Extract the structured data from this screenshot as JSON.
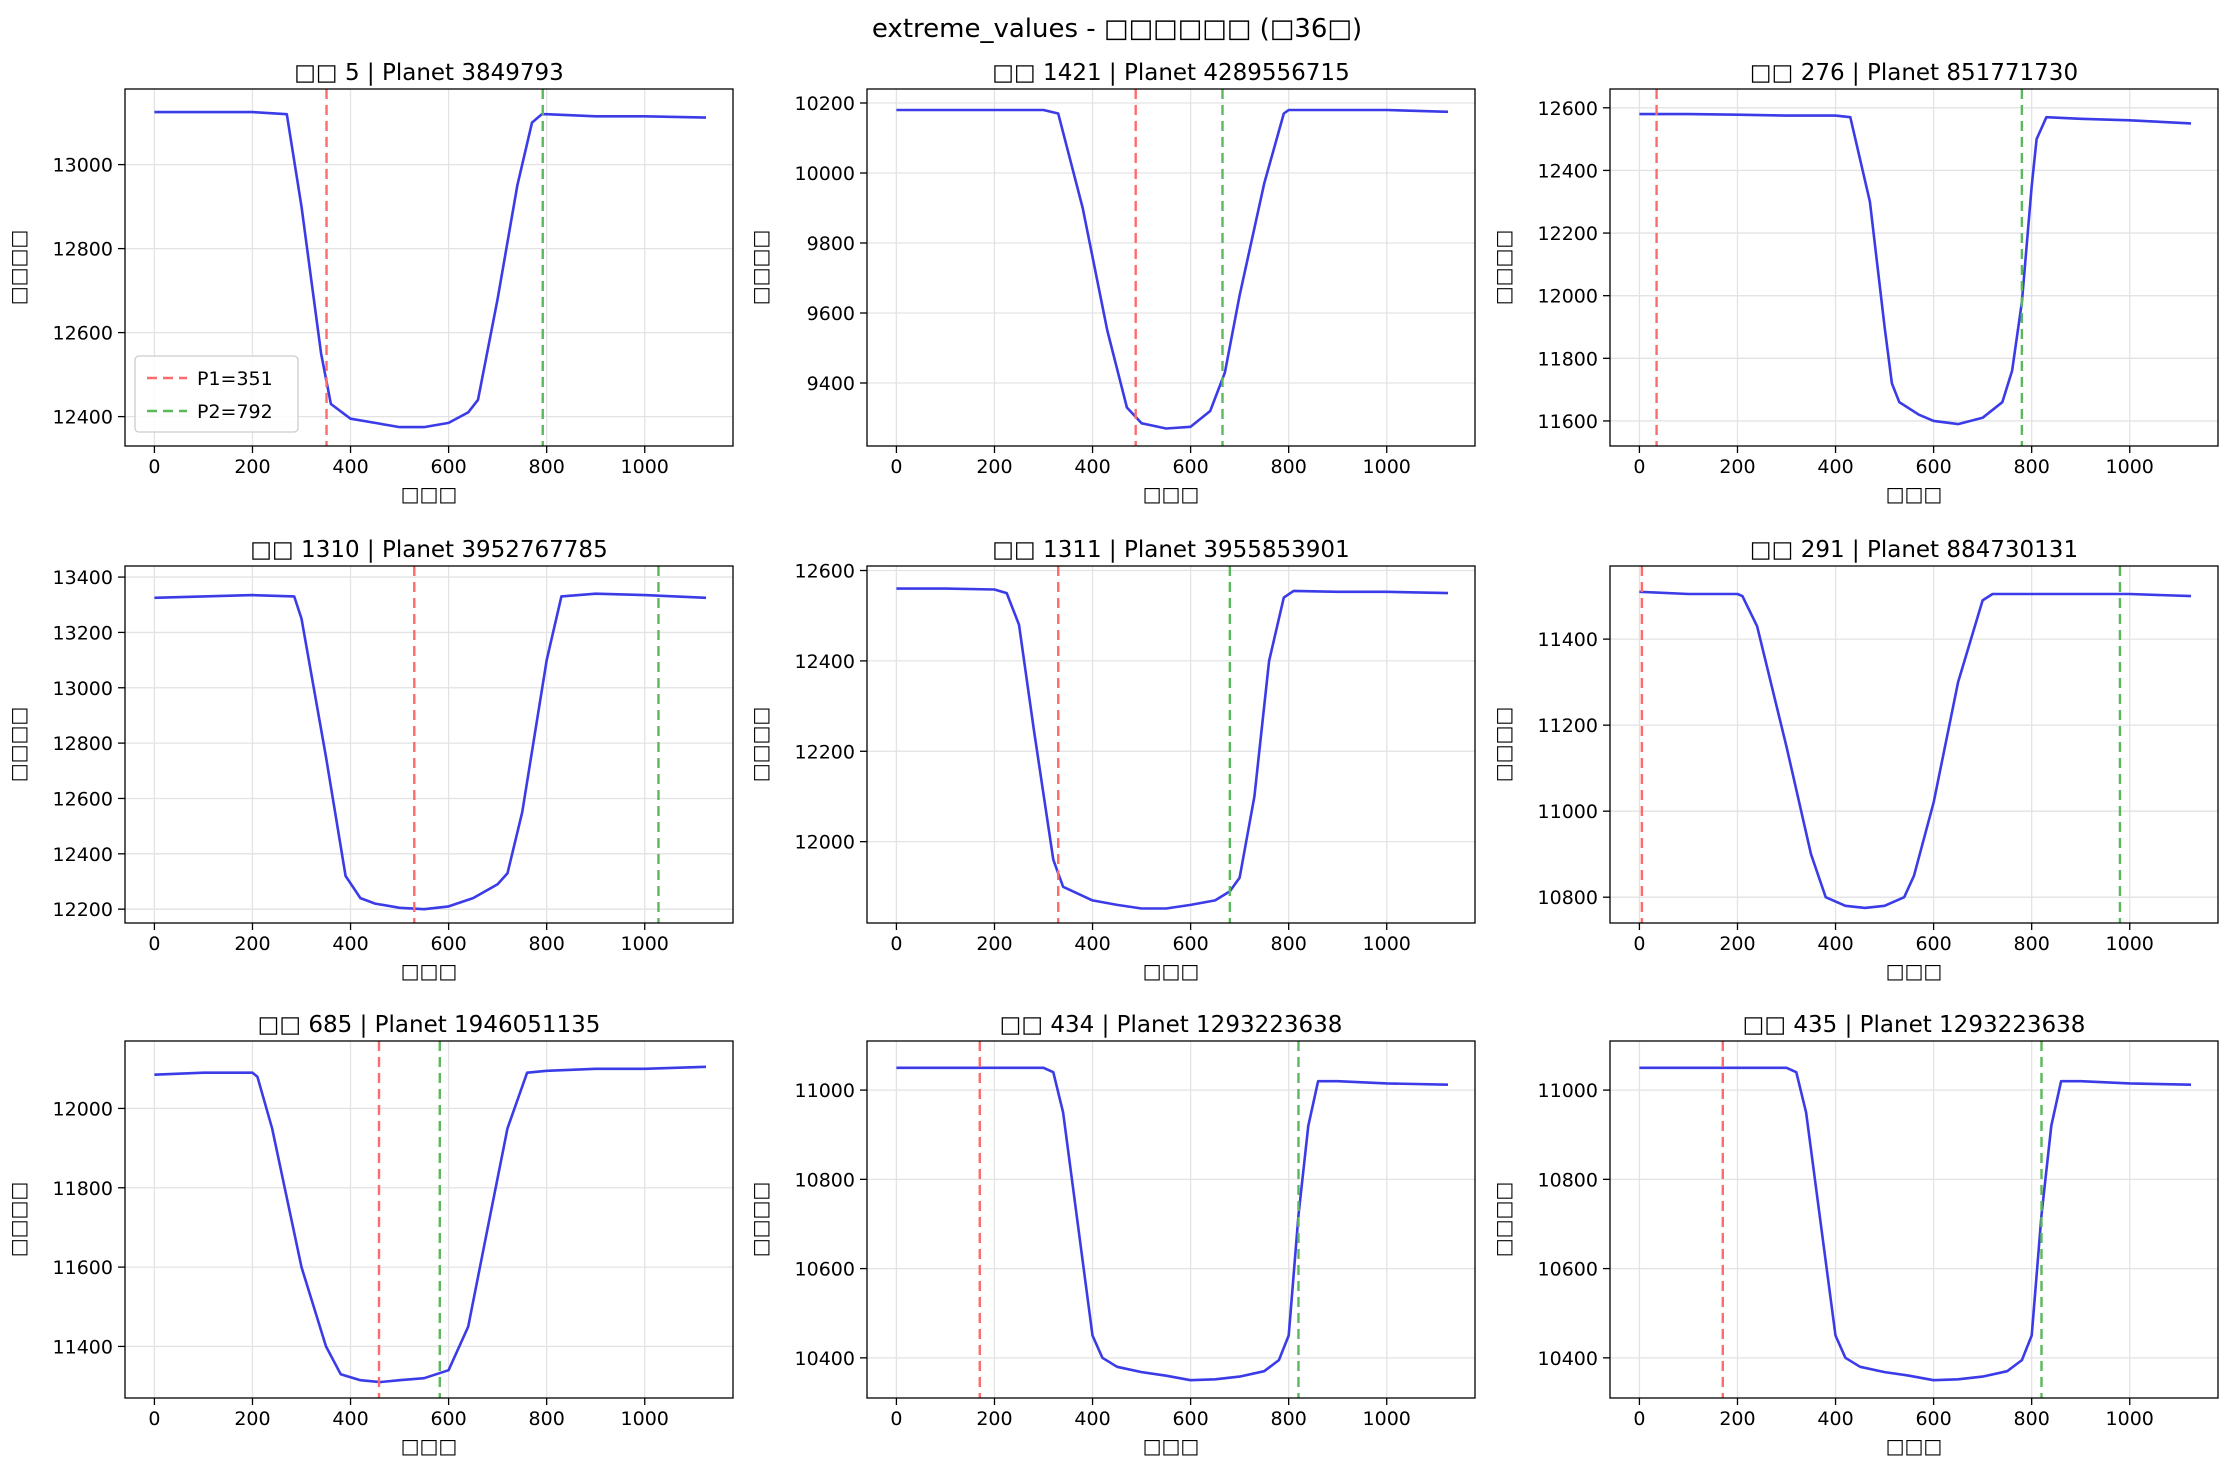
{
  "figure_title": "extreme_values - □□□□□□ (□36□)",
  "chart_data": [
    {
      "type": "line",
      "title": "□□ 5 | Planet 3849793",
      "xlabel": "□□□",
      "ylabel": "□□□□",
      "xlim": [
        -60,
        1180
      ],
      "ylim": [
        12330,
        13180
      ],
      "x_ticks": [
        0,
        200,
        400,
        600,
        800,
        1000
      ],
      "y_ticks": [
        12400,
        12600,
        12800,
        13000
      ],
      "p1": 351,
      "p2": 792,
      "legend": {
        "position": "lower-left",
        "entries": [
          "P1=351",
          "P2=792"
        ]
      },
      "series": [
        {
          "color": "#3b3be8",
          "x": [
            0,
            100,
            200,
            270,
            300,
            340,
            360,
            400,
            450,
            500,
            550,
            600,
            640,
            660,
            700,
            740,
            770,
            790,
            800,
            900,
            1000,
            1125
          ],
          "y": [
            13125,
            13125,
            13125,
            13120,
            12900,
            12550,
            12430,
            12395,
            12385,
            12375,
            12375,
            12385,
            12410,
            12440,
            12680,
            12950,
            13100,
            13120,
            13120,
            13115,
            13115,
            13112
          ]
        }
      ]
    },
    {
      "type": "line",
      "title": "□□ 1421 | Planet 4289556715",
      "xlabel": "□□□",
      "ylabel": "□□□□",
      "xlim": [
        -60,
        1180
      ],
      "ylim": [
        9220,
        10240
      ],
      "x_ticks": [
        0,
        200,
        400,
        600,
        800,
        1000
      ],
      "y_ticks": [
        9400,
        9600,
        9800,
        10000,
        10200
      ],
      "p1": 488,
      "p2": 665,
      "series": [
        {
          "color": "#3b3be8",
          "x": [
            0,
            100,
            200,
            300,
            330,
            380,
            430,
            470,
            500,
            550,
            600,
            640,
            670,
            700,
            750,
            790,
            800,
            900,
            1000,
            1125
          ],
          "y": [
            10180,
            10180,
            10180,
            10180,
            10170,
            9900,
            9550,
            9330,
            9285,
            9270,
            9275,
            9320,
            9430,
            9650,
            9970,
            10170,
            10180,
            10180,
            10180,
            10175
          ]
        }
      ]
    },
    {
      "type": "line",
      "title": "□□ 276 | Planet 851771730",
      "xlabel": "□□□",
      "ylabel": "□□□□",
      "xlim": [
        -60,
        1180
      ],
      "ylim": [
        11520,
        12660
      ],
      "x_ticks": [
        0,
        200,
        400,
        600,
        800,
        1000
      ],
      "y_ticks": [
        11600,
        11800,
        12000,
        12200,
        12400,
        12600
      ],
      "p1": 35,
      "p2": 780,
      "series": [
        {
          "color": "#3b3be8",
          "x": [
            0,
            100,
            200,
            300,
            400,
            430,
            470,
            500,
            515,
            530,
            570,
            600,
            650,
            700,
            740,
            760,
            780,
            800,
            810,
            830,
            900,
            1000,
            1125
          ],
          "y": [
            12580,
            12580,
            12578,
            12575,
            12575,
            12570,
            12300,
            11900,
            11720,
            11660,
            11620,
            11600,
            11590,
            11610,
            11660,
            11760,
            11980,
            12350,
            12500,
            12570,
            12565,
            12560,
            12550
          ]
        }
      ]
    },
    {
      "type": "line",
      "title": "□□ 1310 | Planet 3952767785",
      "xlabel": "□□□",
      "ylabel": "□□□□",
      "xlim": [
        -60,
        1180
      ],
      "ylim": [
        12150,
        13440
      ],
      "x_ticks": [
        0,
        200,
        400,
        600,
        800,
        1000
      ],
      "y_ticks": [
        12200,
        12400,
        12600,
        12800,
        13000,
        13200,
        13400
      ],
      "p1": 530,
      "p2": 1028,
      "series": [
        {
          "color": "#3b3be8",
          "x": [
            0,
            100,
            200,
            285,
            300,
            350,
            390,
            420,
            450,
            500,
            550,
            600,
            650,
            700,
            720,
            750,
            800,
            830,
            900,
            1000,
            1125
          ],
          "y": [
            13325,
            13330,
            13335,
            13330,
            13250,
            12750,
            12320,
            12240,
            12220,
            12205,
            12200,
            12210,
            12240,
            12290,
            12330,
            12550,
            13100,
            13330,
            13340,
            13335,
            13325
          ]
        }
      ]
    },
    {
      "type": "line",
      "title": "□□ 1311 | Planet 3955853901",
      "xlabel": "□□□",
      "ylabel": "□□□□",
      "xlim": [
        -60,
        1180
      ],
      "ylim": [
        11820,
        12610
      ],
      "x_ticks": [
        0,
        200,
        400,
        600,
        800,
        1000
      ],
      "y_ticks": [
        12000,
        12200,
        12400,
        12600
      ],
      "p1": 330,
      "p2": 680,
      "series": [
        {
          "color": "#3b3be8",
          "x": [
            0,
            100,
            200,
            225,
            250,
            280,
            320,
            340,
            400,
            450,
            500,
            550,
            600,
            650,
            680,
            700,
            730,
            760,
            790,
            810,
            900,
            1000,
            1125
          ],
          "y": [
            12560,
            12560,
            12558,
            12550,
            12480,
            12250,
            11960,
            11900,
            11870,
            11860,
            11852,
            11852,
            11860,
            11870,
            11890,
            11920,
            12100,
            12400,
            12540,
            12555,
            12553,
            12553,
            12550
          ]
        }
      ]
    },
    {
      "type": "line",
      "title": "□□ 291 | Planet 884730131",
      "xlabel": "□□□",
      "ylabel": "□□□□",
      "xlim": [
        -60,
        1180
      ],
      "ylim": [
        10740,
        11570
      ],
      "x_ticks": [
        0,
        200,
        400,
        600,
        800,
        1000
      ],
      "y_ticks": [
        10800,
        11000,
        11200,
        11400
      ],
      "p1": 5,
      "p2": 980,
      "series": [
        {
          "color": "#3b3be8",
          "x": [
            0,
            100,
            200,
            210,
            240,
            300,
            350,
            380,
            420,
            460,
            500,
            540,
            560,
            600,
            650,
            700,
            720,
            800,
            900,
            1000,
            1125
          ],
          "y": [
            11510,
            11505,
            11505,
            11500,
            11430,
            11150,
            10900,
            10800,
            10780,
            10775,
            10780,
            10800,
            10850,
            11020,
            11300,
            11490,
            11505,
            11505,
            11505,
            11505,
            11500
          ]
        }
      ]
    },
    {
      "type": "line",
      "title": "□□ 685 | Planet 1946051135",
      "xlabel": "□□□",
      "ylabel": "□□□□",
      "xlim": [
        -60,
        1180
      ],
      "ylim": [
        11270,
        12170
      ],
      "x_ticks": [
        0,
        200,
        400,
        600,
        800,
        1000
      ],
      "y_ticks": [
        11400,
        11600,
        11800,
        12000
      ],
      "p1": 458,
      "p2": 582,
      "series": [
        {
          "color": "#3b3be8",
          "x": [
            0,
            100,
            200,
            210,
            240,
            300,
            350,
            380,
            420,
            460,
            500,
            550,
            600,
            640,
            680,
            720,
            760,
            800,
            900,
            1000,
            1125
          ],
          "y": [
            12085,
            12090,
            12090,
            12080,
            11950,
            11600,
            11400,
            11330,
            11315,
            11310,
            11315,
            11320,
            11340,
            11450,
            11700,
            11950,
            12090,
            12095,
            12100,
            12100,
            12105
          ]
        }
      ]
    },
    {
      "type": "line",
      "title": "□□ 434 | Planet 1293223638",
      "xlabel": "□□□",
      "ylabel": "□□□□",
      "xlim": [
        -60,
        1180
      ],
      "ylim": [
        10310,
        11110
      ],
      "x_ticks": [
        0,
        200,
        400,
        600,
        800,
        1000
      ],
      "y_ticks": [
        10400,
        10600,
        10800,
        11000
      ],
      "p1": 170,
      "p2": 820,
      "series": [
        {
          "color": "#3b3be8",
          "x": [
            0,
            100,
            200,
            300,
            320,
            340,
            370,
            400,
            420,
            450,
            500,
            550,
            600,
            650,
            700,
            750,
            780,
            800,
            820,
            840,
            860,
            900,
            1000,
            1125
          ],
          "y": [
            11050,
            11050,
            11050,
            11050,
            11040,
            10950,
            10700,
            10450,
            10400,
            10380,
            10368,
            10360,
            10350,
            10352,
            10358,
            10370,
            10395,
            10450,
            10720,
            10920,
            11020,
            11020,
            11015,
            11012
          ]
        }
      ]
    },
    {
      "type": "line",
      "title": "□□ 435 | Planet 1293223638",
      "xlabel": "□□□",
      "ylabel": "□□□□",
      "xlim": [
        -60,
        1180
      ],
      "ylim": [
        10310,
        11110
      ],
      "x_ticks": [
        0,
        200,
        400,
        600,
        800,
        1000
      ],
      "y_ticks": [
        10400,
        10600,
        10800,
        11000
      ],
      "p1": 170,
      "p2": 820,
      "series": [
        {
          "color": "#3b3be8",
          "x": [
            0,
            100,
            200,
            300,
            320,
            340,
            370,
            400,
            420,
            450,
            500,
            550,
            600,
            650,
            700,
            750,
            780,
            800,
            820,
            840,
            860,
            900,
            1000,
            1125
          ],
          "y": [
            11050,
            11050,
            11050,
            11050,
            11040,
            10950,
            10700,
            10450,
            10400,
            10380,
            10368,
            10360,
            10350,
            10352,
            10358,
            10370,
            10395,
            10450,
            10720,
            10920,
            11020,
            11020,
            11015,
            11012
          ]
        }
      ]
    }
  ]
}
